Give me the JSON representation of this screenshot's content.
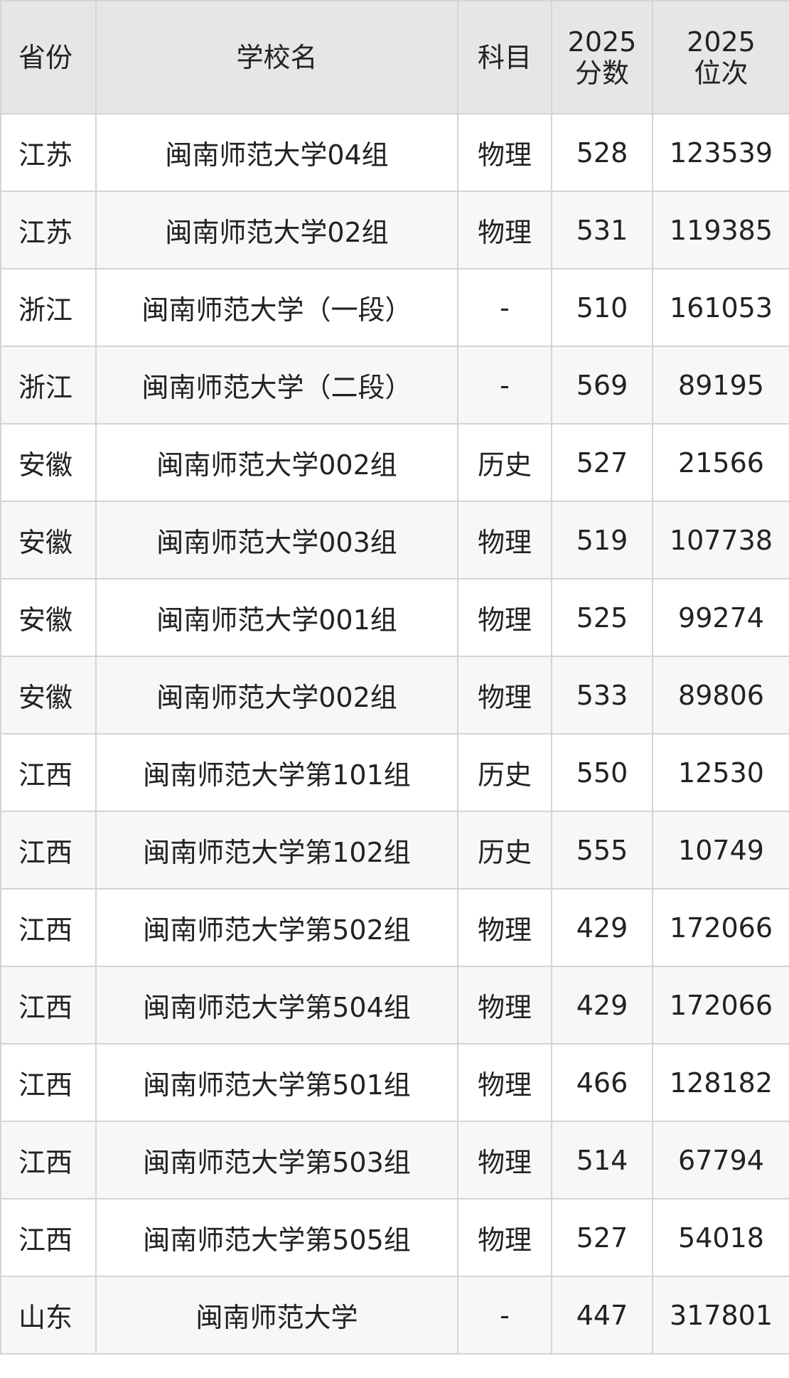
{
  "header": {
    "province": "省份",
    "school": "学校名",
    "subject": "科目",
    "score_line1": "2025",
    "score_line2": "分数",
    "rank_line1": "2025",
    "rank_line2": "位次"
  },
  "rows": [
    {
      "province": "江苏",
      "school": "闽南师范大学04组",
      "subject": "物理",
      "score": "528",
      "rank": "123539"
    },
    {
      "province": "江苏",
      "school": "闽南师范大学02组",
      "subject": "物理",
      "score": "531",
      "rank": "119385"
    },
    {
      "province": "浙江",
      "school": "闽南师范大学（一段）",
      "subject": "-",
      "score": "510",
      "rank": "161053"
    },
    {
      "province": "浙江",
      "school": "闽南师范大学（二段）",
      "subject": "-",
      "score": "569",
      "rank": "89195"
    },
    {
      "province": "安徽",
      "school": "闽南师范大学002组",
      "subject": "历史",
      "score": "527",
      "rank": "21566"
    },
    {
      "province": "安徽",
      "school": "闽南师范大学003组",
      "subject": "物理",
      "score": "519",
      "rank": "107738"
    },
    {
      "province": "安徽",
      "school": "闽南师范大学001组",
      "subject": "物理",
      "score": "525",
      "rank": "99274"
    },
    {
      "province": "安徽",
      "school": "闽南师范大学002组",
      "subject": "物理",
      "score": "533",
      "rank": "89806"
    },
    {
      "province": "江西",
      "school": "闽南师范大学第101组",
      "subject": "历史",
      "score": "550",
      "rank": "12530"
    },
    {
      "province": "江西",
      "school": "闽南师范大学第102组",
      "subject": "历史",
      "score": "555",
      "rank": "10749"
    },
    {
      "province": "江西",
      "school": "闽南师范大学第502组",
      "subject": "物理",
      "score": "429",
      "rank": "172066"
    },
    {
      "province": "江西",
      "school": "闽南师范大学第504组",
      "subject": "物理",
      "score": "429",
      "rank": "172066"
    },
    {
      "province": "江西",
      "school": "闽南师范大学第501组",
      "subject": "物理",
      "score": "466",
      "rank": "128182"
    },
    {
      "province": "江西",
      "school": "闽南师范大学第503组",
      "subject": "物理",
      "score": "514",
      "rank": "67794"
    },
    {
      "province": "江西",
      "school": "闽南师范大学第505组",
      "subject": "物理",
      "score": "527",
      "rank": "54018"
    },
    {
      "province": "山东",
      "school": "闽南师范大学",
      "subject": "-",
      "score": "447",
      "rank": "317801"
    }
  ]
}
